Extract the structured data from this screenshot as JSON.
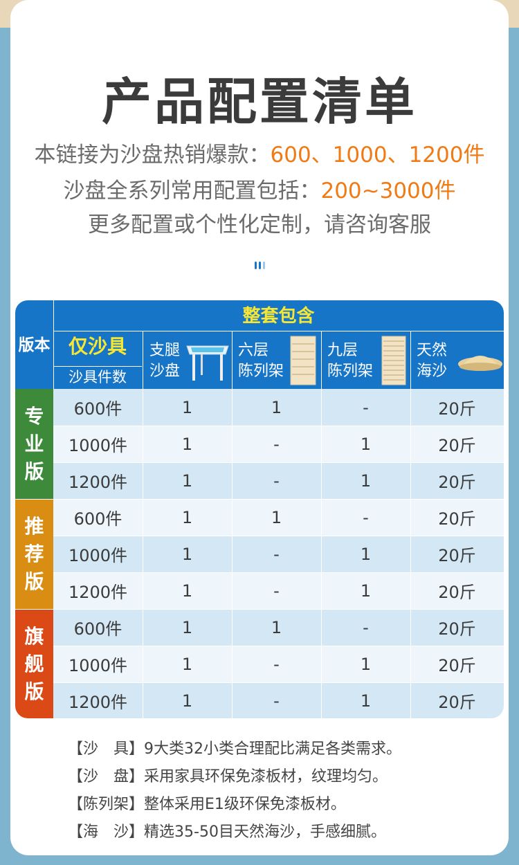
{
  "title": "产品配置清单",
  "intro": {
    "line1_prefix": "本链接为沙盘热销爆款：",
    "line1_value": "600、1000、1200件",
    "line2_prefix": "沙盘全系列常用配置包括：",
    "line2_value": "200~3000件",
    "line3": "更多配置或个性化定制，请咨询客服"
  },
  "colors": {
    "header_blue": "#1775c8",
    "highlight_orange": "#f07a14",
    "yellow_text": "#f7e733",
    "group_green": "#3d8a3a",
    "group_orange": "#d98d12",
    "group_red": "#db4a16",
    "row_light": "#d3e7f5",
    "row_white": "#eef5fb"
  },
  "table": {
    "version_header": "版本",
    "includes_header": "整套包含",
    "sand_only_header": "仅沙具",
    "sand_count_header": "沙具件数",
    "col_table": "支腿\n沙盘",
    "col_shelf6": "六层\n陈列架",
    "col_shelf9": "九层\n陈列架",
    "col_sand": "天然\n海沙",
    "groups": [
      {
        "name": "专业版",
        "rows": [
          {
            "count": "600件",
            "table": "1",
            "shelf6": "1",
            "shelf9": "-",
            "sand": "20斤"
          },
          {
            "count": "1000件",
            "table": "1",
            "shelf6": "-",
            "shelf9": "1",
            "sand": "20斤"
          },
          {
            "count": "1200件",
            "table": "1",
            "shelf6": "-",
            "shelf9": "1",
            "sand": "20斤"
          }
        ]
      },
      {
        "name": "推荐版",
        "rows": [
          {
            "count": "600件",
            "table": "1",
            "shelf6": "1",
            "shelf9": "-",
            "sand": "20斤"
          },
          {
            "count": "1000件",
            "table": "1",
            "shelf6": "-",
            "shelf9": "1",
            "sand": "20斤"
          },
          {
            "count": "1200件",
            "table": "1",
            "shelf6": "-",
            "shelf9": "1",
            "sand": "20斤"
          }
        ]
      },
      {
        "name": "旗舰版",
        "rows": [
          {
            "count": "600件",
            "table": "1",
            "shelf6": "1",
            "shelf9": "-",
            "sand": "20斤"
          },
          {
            "count": "1000件",
            "table": "1",
            "shelf6": "-",
            "shelf9": "1",
            "sand": "20斤"
          },
          {
            "count": "1200件",
            "table": "1",
            "shelf6": "-",
            "shelf9": "1",
            "sand": "20斤"
          }
        ]
      }
    ]
  },
  "notes": [
    {
      "label": "【沙　具】",
      "text": "9大类32小类合理配比满足各类需求。"
    },
    {
      "label": "【沙　盘】",
      "text": "采用家具环保免漆板材，纹理均匀。"
    },
    {
      "label": "【陈列架】",
      "text": "整体采用E1级环保免漆板材。"
    },
    {
      "label": "【海　沙】",
      "text": "精选35-50目天然海沙，手感细腻。"
    }
  ]
}
